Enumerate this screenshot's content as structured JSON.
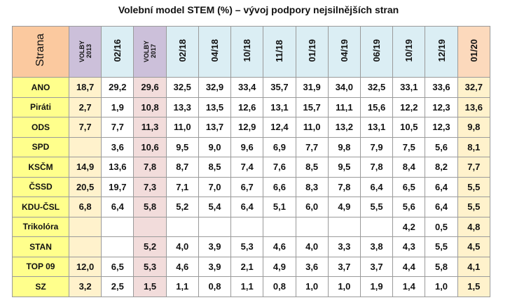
{
  "title": "Volební model STEM (%) – vývoj podpory nejsilnějších stran",
  "table": {
    "header": [
      "Strana",
      "VOLBY 2013",
      "02/16",
      "VOLBY 2017",
      "02/18",
      "04/18",
      "10/18",
      "11/18",
      "01/19",
      "04/19",
      "06/19",
      "10/19",
      "12/19",
      "01/20"
    ],
    "rows": [
      [
        "ANO",
        "18,7",
        "29,2",
        "29,6",
        "32,5",
        "32,9",
        "33,4",
        "35,7",
        "31,9",
        "34,0",
        "32,5",
        "33,1",
        "33,6",
        "32,7"
      ],
      [
        "Piráti",
        "2,7",
        "1,9",
        "10,8",
        "13,3",
        "13,5",
        "12,6",
        "13,1",
        "15,7",
        "11,1",
        "15,6",
        "12,2",
        "12,3",
        "13,6"
      ],
      [
        "ODS",
        "7,7",
        "7,7",
        "11,3",
        "11,0",
        "13,7",
        "12,9",
        "12,4",
        "11,0",
        "13,2",
        "13,1",
        "10,5",
        "12,3",
        "9,8"
      ],
      [
        "SPD",
        null,
        "3,6",
        "10,6",
        "9,5",
        "9,0",
        "9,6",
        "6,9",
        "7,7",
        "9,8",
        "7,9",
        "7,5",
        "5,6",
        "8,1"
      ],
      [
        "KSČM",
        "14,9",
        "13,6",
        "7,8",
        "8,7",
        "8,5",
        "7,4",
        "7,6",
        "8,5",
        "9,5",
        "7,8",
        "8,4",
        "8,2",
        "7,7"
      ],
      [
        "ČSSD",
        "20,5",
        "19,7",
        "7,3",
        "7,1",
        "7,0",
        "6,7",
        "6,6",
        "8,3",
        "7,8",
        "6,4",
        "6,5",
        "6,4",
        "5,5"
      ],
      [
        "KDU-ČSL",
        "6,8",
        "6,4",
        "5,8",
        "5,2",
        "5,4",
        "6,4",
        "5,1",
        "6,0",
        "4,9",
        "5,5",
        "5,6",
        "6,4",
        "5,5"
      ],
      [
        "Trikolóra",
        null,
        null,
        null,
        null,
        null,
        null,
        null,
        null,
        null,
        null,
        "4,2",
        "0,5",
        "4,8"
      ],
      [
        "STAN",
        null,
        null,
        "5,2",
        "4,0",
        "3,9",
        "5,3",
        "4,6",
        "4,0",
        "3,3",
        "3,8",
        "4,3",
        "5,5",
        "4,5"
      ],
      [
        "TOP 09",
        "12,0",
        "6,5",
        "5,3",
        "4,6",
        "3,9",
        "2,1",
        "4,9",
        "3,6",
        "3,7",
        "3,7",
        "4,4",
        "5,8",
        "4,1"
      ],
      [
        "SZ",
        "3,2",
        "2,5",
        "1,5",
        "1,1",
        "0,8",
        "1,1",
        "0,8",
        "1,0",
        "1,0",
        "1,9",
        "1,4",
        "1,0",
        "1,5"
      ]
    ]
  }
}
